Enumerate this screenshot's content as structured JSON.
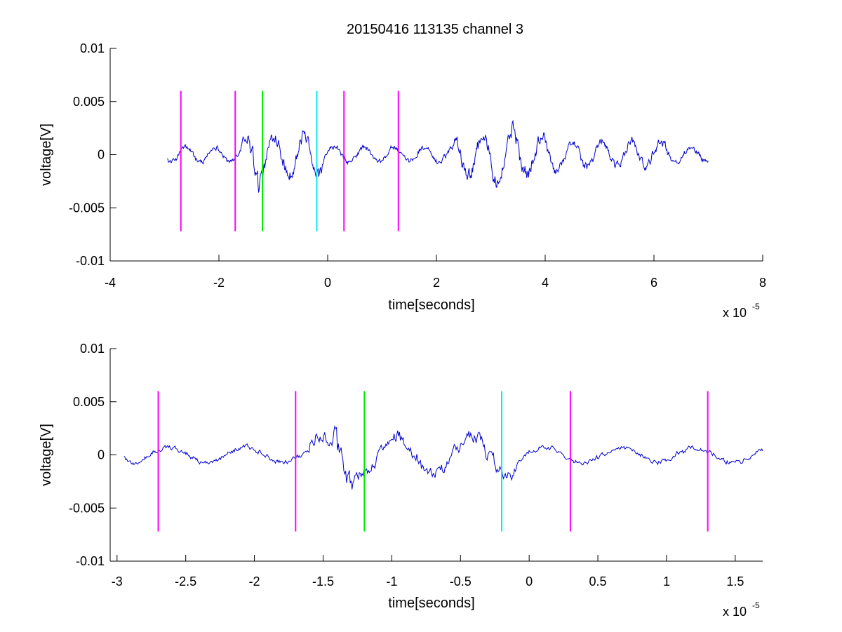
{
  "figure": {
    "title": "20150416 113135 channel 3"
  },
  "chart_data": [
    {
      "type": "line",
      "title": "20150416 113135 channel 3",
      "xlabel": "time[seconds]",
      "ylabel": "voltage[V]",
      "x_multiplier": "x 10",
      "x_multiplier_exp": "-5",
      "xlim": [
        -4,
        8
      ],
      "ylim": [
        -0.01,
        0.01
      ],
      "xticks": [
        "-4",
        "-2",
        "0",
        "2",
        "4",
        "6",
        "8"
      ],
      "yticks": [
        "0.01",
        "0.005",
        "0",
        "-0.005",
        "-0.01"
      ],
      "signal": {
        "x_start": -2.95,
        "x_end": 7.0,
        "color": "#0000cc"
      },
      "markers": [
        {
          "x": -2.7,
          "color": "#ff00ff",
          "ymin": -0.0072,
          "ymax": 0.006
        },
        {
          "x": -1.7,
          "color": "#ff00ff",
          "ymin": -0.0072,
          "ymax": 0.006
        },
        {
          "x": -1.2,
          "color": "#00ee00",
          "ymin": -0.0072,
          "ymax": 0.006
        },
        {
          "x": -0.2,
          "color": "#00eeee",
          "ymin": -0.0072,
          "ymax": 0.006
        },
        {
          "x": 0.3,
          "color": "#ff00ff",
          "ymin": -0.0072,
          "ymax": 0.006
        },
        {
          "x": 1.3,
          "color": "#ff00ff",
          "ymin": -0.0072,
          "ymax": 0.006
        }
      ]
    },
    {
      "type": "line",
      "xlabel": "time[seconds]",
      "ylabel": "voltage[V]",
      "x_multiplier": "x 10",
      "x_multiplier_exp": "-5",
      "xlim": [
        -3.05,
        1.7
      ],
      "ylim": [
        -0.01,
        0.01
      ],
      "xticks": [
        "-3",
        "-2.5",
        "-2",
        "-1.5",
        "-1",
        "-0.5",
        "0",
        "0.5",
        "1",
        "1.5"
      ],
      "yticks": [
        "0.01",
        "0.005",
        "0",
        "-0.005",
        "-0.01"
      ],
      "signal": {
        "x_start": -2.95,
        "x_end": 1.7,
        "color": "#0000cc"
      },
      "markers": [
        {
          "x": -2.7,
          "color": "#ff00ff",
          "ymin": -0.0072,
          "ymax": 0.006
        },
        {
          "x": -1.7,
          "color": "#ff00ff",
          "ymin": -0.0072,
          "ymax": 0.006
        },
        {
          "x": -1.2,
          "color": "#00ee00",
          "ymin": -0.0072,
          "ymax": 0.006
        },
        {
          "x": -0.2,
          "color": "#00eeee",
          "ymin": -0.0072,
          "ymax": 0.006
        },
        {
          "x": 0.3,
          "color": "#ff00ff",
          "ymin": -0.0072,
          "ymax": 0.006
        },
        {
          "x": 1.3,
          "color": "#ff00ff",
          "ymin": -0.0072,
          "ymax": 0.006
        }
      ]
    }
  ]
}
